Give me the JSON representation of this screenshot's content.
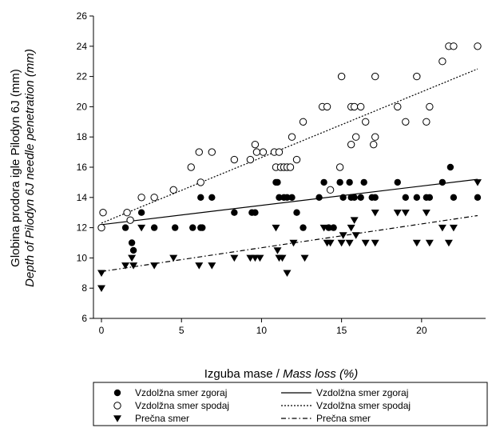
{
  "chart_data": {
    "type": "scatter",
    "xlabel_plain": "Izguba mase / ",
    "xlabel_italic": "Mass loss (%)",
    "ylabel_line1": "Globina prodora igle Pilodyn 6J (mm)",
    "ylabel_line2": "Depth of Pilodyn 6J needle penetration (mm)",
    "xlim": [
      -0.5,
      24
    ],
    "ylim": [
      6,
      26
    ],
    "xticks": [
      "0",
      "5",
      "10",
      "15",
      "20"
    ],
    "xtick_values": [
      0,
      5,
      10,
      15,
      20
    ],
    "yticks": [
      "6",
      "8",
      "10",
      "12",
      "14",
      "16",
      "18",
      "20",
      "22",
      "24",
      "26"
    ],
    "ytick_values": [
      6,
      8,
      10,
      12,
      14,
      16,
      18,
      20,
      22,
      24,
      26
    ],
    "grid": false,
    "legend_position": "bottom",
    "series": [
      {
        "name": "Vzdolžna smer zgoraj",
        "marker": "filled-circle",
        "points": [
          [
            0,
            12
          ],
          [
            1.5,
            12
          ],
          [
            1.9,
            11
          ],
          [
            2,
            10.5
          ],
          [
            2.5,
            13
          ],
          [
            3.3,
            12
          ],
          [
            4.6,
            12
          ],
          [
            5.7,
            12
          ],
          [
            6.2,
            12
          ],
          [
            6.2,
            14
          ],
          [
            6.3,
            12
          ],
          [
            6.9,
            14
          ],
          [
            8.3,
            13
          ],
          [
            9.4,
            13
          ],
          [
            9.6,
            13
          ],
          [
            10.9,
            15
          ],
          [
            11,
            15
          ],
          [
            11.1,
            14
          ],
          [
            11.4,
            14
          ],
          [
            11.6,
            14
          ],
          [
            11.9,
            14
          ],
          [
            12.2,
            13
          ],
          [
            12.6,
            12
          ],
          [
            13.6,
            14
          ],
          [
            13.9,
            15
          ],
          [
            14.2,
            12
          ],
          [
            14.5,
            12
          ],
          [
            14.9,
            15
          ],
          [
            15.1,
            14
          ],
          [
            15.5,
            15
          ],
          [
            15.6,
            14
          ],
          [
            15.8,
            14
          ],
          [
            16.2,
            14
          ],
          [
            16.4,
            15
          ],
          [
            16.9,
            14
          ],
          [
            17.1,
            14
          ],
          [
            18.5,
            15
          ],
          [
            19,
            14
          ],
          [
            19.7,
            14
          ],
          [
            20.3,
            14
          ],
          [
            20.5,
            14
          ],
          [
            21.3,
            15
          ],
          [
            21.8,
            16
          ],
          [
            22,
            14
          ],
          [
            23.5,
            14
          ]
        ]
      },
      {
        "name": "Vzdolžna smer spodaj",
        "marker": "open-circle",
        "points": [
          [
            0,
            12
          ],
          [
            0.1,
            13
          ],
          [
            1.6,
            13
          ],
          [
            1.8,
            12.5
          ],
          [
            2.5,
            14
          ],
          [
            3.3,
            14
          ],
          [
            4.5,
            14.5
          ],
          [
            5.6,
            16
          ],
          [
            6.1,
            17
          ],
          [
            6.2,
            15
          ],
          [
            6.9,
            17
          ],
          [
            8.3,
            16.5
          ],
          [
            9.3,
            16.5
          ],
          [
            9.6,
            17.5
          ],
          [
            9.7,
            17
          ],
          [
            10.1,
            17
          ],
          [
            10.8,
            17
          ],
          [
            10.9,
            16
          ],
          [
            11.1,
            17
          ],
          [
            11.2,
            16
          ],
          [
            11.4,
            16
          ],
          [
            11.6,
            16
          ],
          [
            11.8,
            16
          ],
          [
            11.9,
            18
          ],
          [
            12.2,
            16.5
          ],
          [
            12.6,
            19
          ],
          [
            13.8,
            20
          ],
          [
            14.1,
            20
          ],
          [
            14.3,
            14.5
          ],
          [
            14.9,
            16
          ],
          [
            15,
            22
          ],
          [
            15.6,
            17.5
          ],
          [
            15.6,
            20
          ],
          [
            15.8,
            20
          ],
          [
            15.9,
            18
          ],
          [
            16.2,
            20
          ],
          [
            16.5,
            19
          ],
          [
            17,
            17.5
          ],
          [
            17.1,
            18
          ],
          [
            17.1,
            22
          ],
          [
            18.5,
            20
          ],
          [
            19,
            19
          ],
          [
            19.7,
            22
          ],
          [
            20.3,
            19
          ],
          [
            20.5,
            20
          ],
          [
            21.3,
            23
          ],
          [
            21.7,
            24
          ],
          [
            22,
            24
          ],
          [
            23.5,
            24
          ]
        ]
      },
      {
        "name": "Prečna smer",
        "marker": "filled-triangle-down",
        "points": [
          [
            0,
            9
          ],
          [
            0,
            8
          ],
          [
            1.5,
            9.5
          ],
          [
            1.9,
            10
          ],
          [
            2,
            9.5
          ],
          [
            2.5,
            12
          ],
          [
            3.3,
            9.5
          ],
          [
            4.5,
            10
          ],
          [
            6.1,
            9.5
          ],
          [
            6.9,
            9.5
          ],
          [
            8.3,
            10
          ],
          [
            9.3,
            10
          ],
          [
            9.6,
            10
          ],
          [
            9.9,
            10
          ],
          [
            10.9,
            12
          ],
          [
            11,
            10.5
          ],
          [
            11.1,
            10
          ],
          [
            11.3,
            10
          ],
          [
            11.6,
            9
          ],
          [
            12,
            11
          ],
          [
            12.7,
            10
          ],
          [
            13.9,
            12
          ],
          [
            14.1,
            11
          ],
          [
            14.3,
            11
          ],
          [
            15,
            11
          ],
          [
            15.1,
            11.5
          ],
          [
            15.5,
            11
          ],
          [
            15.6,
            12
          ],
          [
            15.8,
            12.5
          ],
          [
            15.9,
            11.5
          ],
          [
            16.5,
            11
          ],
          [
            17.1,
            11
          ],
          [
            17.1,
            13
          ],
          [
            18.5,
            13
          ],
          [
            19,
            13
          ],
          [
            19.7,
            11
          ],
          [
            20.3,
            13
          ],
          [
            20.5,
            11
          ],
          [
            21.3,
            12
          ],
          [
            21.7,
            11
          ],
          [
            22,
            12
          ],
          [
            23.5,
            15
          ]
        ]
      }
    ],
    "regression_lines": [
      {
        "name": "Vzdolžna smer zgoraj",
        "style": "solid",
        "x": [
          0,
          23.5
        ],
        "y": [
          12.2,
          15.2
        ]
      },
      {
        "name": "Vzdolžna smer spodaj",
        "style": "dotted",
        "x": [
          0,
          23.5
        ],
        "y": [
          12.3,
          22.5
        ]
      },
      {
        "name": "Prečna smer",
        "style": "dash-dot",
        "x": [
          0,
          23.5
        ],
        "y": [
          9.1,
          12.8
        ]
      }
    ]
  },
  "legend": {
    "markers": [
      {
        "label": "Vzdolžna smer zgoraj",
        "marker": "filled-circle"
      },
      {
        "label": "Vzdolžna smer spodaj",
        "marker": "open-circle"
      },
      {
        "label": "Prečna smer",
        "marker": "filled-triangle-down"
      }
    ],
    "lines": [
      {
        "label": "Vzdolžna smer zgoraj",
        "style": "solid"
      },
      {
        "label": "Vzdolžna smer spodaj",
        "style": "dotted"
      },
      {
        "label": "Prečna smer",
        "style": "dash-dot"
      }
    ]
  }
}
